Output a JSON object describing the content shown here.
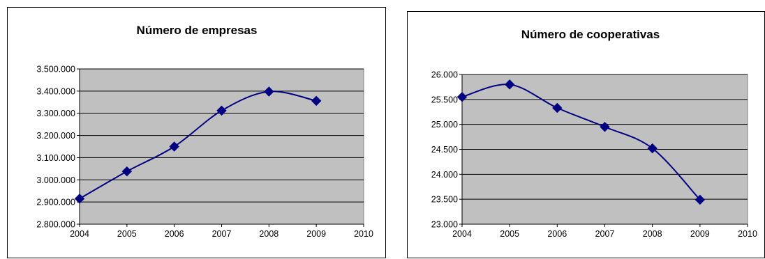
{
  "chart_data": [
    {
      "type": "line",
      "title": "Número de empresas",
      "categories": [
        "2004",
        "2005",
        "2006",
        "2007",
        "2008",
        "2009",
        "2010"
      ],
      "series": [
        {
          "values": [
            2915000,
            3038000,
            3150000,
            3312000,
            3398000,
            3356000,
            null
          ]
        }
      ],
      "ylim": [
        2800000,
        3500000
      ],
      "yticks": [
        2800000,
        2900000,
        3000000,
        3100000,
        3200000,
        3300000,
        3400000,
        3500000
      ],
      "ytick_labels": [
        "2.800.000",
        "2.900.000",
        "3.000.000",
        "3.100.000",
        "3.200.000",
        "3.300.000",
        "3.400.000",
        "3.500.000"
      ],
      "xlabel": "",
      "ylabel": "",
      "grid": true,
      "legend": "none",
      "colors": {
        "plot_bg": "#c0c0c0",
        "line": "#000080",
        "marker": "#000080",
        "grid": "#000000"
      }
    },
    {
      "type": "line",
      "title": "Número de cooperativas",
      "categories": [
        "2004",
        "2005",
        "2006",
        "2007",
        "2008",
        "2009",
        "2010"
      ],
      "series": [
        {
          "values": [
            25550,
            25800,
            25330,
            24950,
            24520,
            23490,
            null
          ]
        }
      ],
      "ylim": [
        23000,
        26000
      ],
      "yticks": [
        23000,
        23500,
        24000,
        24500,
        25000,
        25500,
        26000
      ],
      "ytick_labels": [
        "23.000",
        "23.500",
        "24.000",
        "24.500",
        "25.000",
        "25.500",
        "26.000"
      ],
      "xlabel": "",
      "ylabel": "",
      "grid": true,
      "legend": "none",
      "colors": {
        "plot_bg": "#c0c0c0",
        "line": "#000080",
        "marker": "#000080",
        "grid": "#000000"
      }
    }
  ]
}
